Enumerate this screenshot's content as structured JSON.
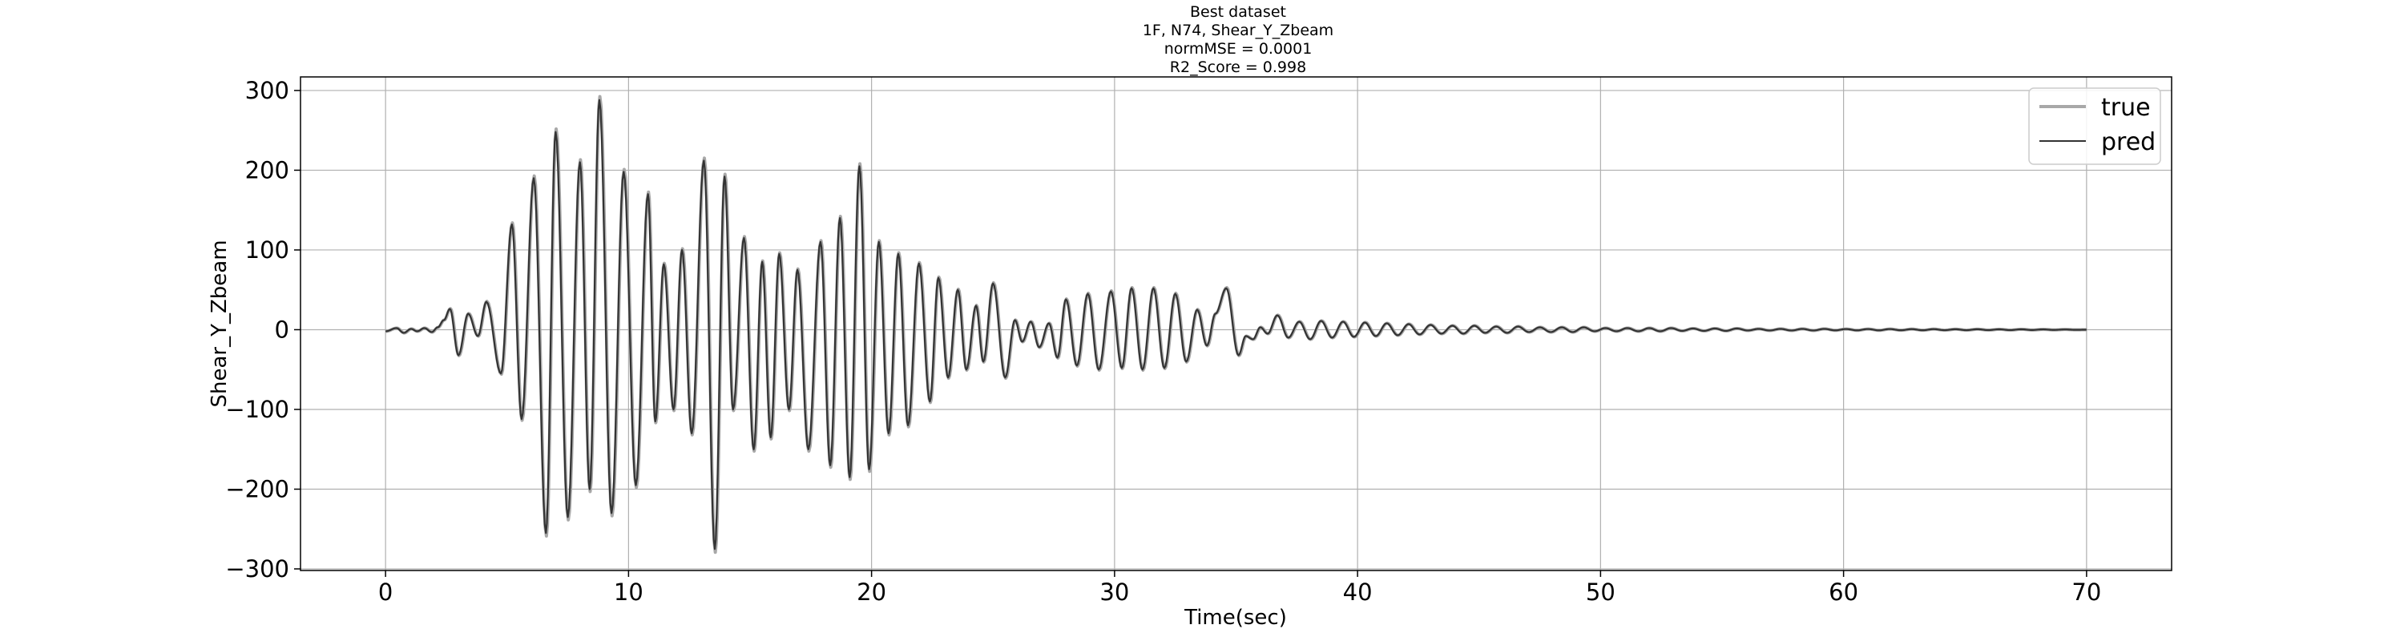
{
  "chart_data": {
    "type": "line",
    "title_lines": [
      "Best dataset",
      "1F, N74, Shear_Y_Zbeam",
      "normMSE = 0.0001",
      "R2_Score = 0.998"
    ],
    "xlabel": "Time(sec)",
    "ylabel": "Shear_Y_Zbeam",
    "xlim": [
      -3.5,
      73.5
    ],
    "ylim": [
      -302,
      317
    ],
    "xticks": [
      0,
      10,
      20,
      30,
      40,
      50,
      60,
      70
    ],
    "yticks": [
      -300,
      -200,
      -100,
      0,
      100,
      200,
      300
    ],
    "xtick_labels": [
      "0",
      "10",
      "20",
      "30",
      "40",
      "50",
      "60",
      "70"
    ],
    "ytick_labels": [
      "−300",
      "−200",
      "−100",
      "0",
      "100",
      "200",
      "300"
    ],
    "grid": true,
    "legend_position": "top-right",
    "series": [
      {
        "name": "true",
        "color": "#a8a8a8"
      },
      {
        "name": "pred",
        "color": "#333333"
      }
    ],
    "x_range": [
      0,
      70
    ],
    "peaks": [
      {
        "t": 0.0,
        "v": -2
      },
      {
        "t": 0.45,
        "v": 2
      },
      {
        "t": 0.75,
        "v": -4
      },
      {
        "t": 1.05,
        "v": 1
      },
      {
        "t": 1.3,
        "v": -2
      },
      {
        "t": 1.6,
        "v": 2
      },
      {
        "t": 1.9,
        "v": -3
      },
      {
        "t": 2.15,
        "v": 3
      },
      {
        "t": 2.4,
        "v": 12
      },
      {
        "t": 2.65,
        "v": 26
      },
      {
        "t": 3.0,
        "v": -32
      },
      {
        "t": 3.4,
        "v": 20
      },
      {
        "t": 3.8,
        "v": -8
      },
      {
        "t": 4.15,
        "v": 35
      },
      {
        "t": 4.75,
        "v": -55
      },
      {
        "t": 5.2,
        "v": 132
      },
      {
        "t": 5.6,
        "v": -112
      },
      {
        "t": 6.1,
        "v": 190
      },
      {
        "t": 6.6,
        "v": -255
      },
      {
        "t": 7.0,
        "v": 248
      },
      {
        "t": 7.5,
        "v": -235
      },
      {
        "t": 8.0,
        "v": 210
      },
      {
        "t": 8.4,
        "v": -200
      },
      {
        "t": 8.8,
        "v": 288
      },
      {
        "t": 9.3,
        "v": -230
      },
      {
        "t": 9.8,
        "v": 198
      },
      {
        "t": 10.3,
        "v": -195
      },
      {
        "t": 10.8,
        "v": 170
      },
      {
        "t": 11.1,
        "v": -115
      },
      {
        "t": 11.45,
        "v": 82
      },
      {
        "t": 11.85,
        "v": -100
      },
      {
        "t": 12.2,
        "v": 100
      },
      {
        "t": 12.6,
        "v": -130
      },
      {
        "t": 13.1,
        "v": 212
      },
      {
        "t": 13.55,
        "v": -275
      },
      {
        "t": 13.95,
        "v": 192
      },
      {
        "t": 14.3,
        "v": -100
      },
      {
        "t": 14.75,
        "v": 115
      },
      {
        "t": 15.15,
        "v": -150
      },
      {
        "t": 15.5,
        "v": 85
      },
      {
        "t": 15.85,
        "v": -135
      },
      {
        "t": 16.2,
        "v": 95
      },
      {
        "t": 16.6,
        "v": -100
      },
      {
        "t": 16.95,
        "v": 75
      },
      {
        "t": 17.4,
        "v": -150
      },
      {
        "t": 17.9,
        "v": 110
      },
      {
        "t": 18.3,
        "v": -170
      },
      {
        "t": 18.7,
        "v": 140
      },
      {
        "t": 19.1,
        "v": -185
      },
      {
        "t": 19.5,
        "v": 205
      },
      {
        "t": 19.9,
        "v": -175
      },
      {
        "t": 20.3,
        "v": 110
      },
      {
        "t": 20.7,
        "v": -130
      },
      {
        "t": 21.1,
        "v": 95
      },
      {
        "t": 21.5,
        "v": -120
      },
      {
        "t": 21.95,
        "v": 83
      },
      {
        "t": 22.4,
        "v": -90
      },
      {
        "t": 22.75,
        "v": 65
      },
      {
        "t": 23.15,
        "v": -60
      },
      {
        "t": 23.55,
        "v": 50
      },
      {
        "t": 23.9,
        "v": -50
      },
      {
        "t": 24.3,
        "v": 30
      },
      {
        "t": 24.6,
        "v": -40
      },
      {
        "t": 25.0,
        "v": 58
      },
      {
        "t": 25.5,
        "v": -60
      },
      {
        "t": 25.9,
        "v": 12
      },
      {
        "t": 26.2,
        "v": -15
      },
      {
        "t": 26.55,
        "v": 10
      },
      {
        "t": 26.9,
        "v": -22
      },
      {
        "t": 27.3,
        "v": 8
      },
      {
        "t": 27.65,
        "v": -35
      },
      {
        "t": 28.0,
        "v": 38
      },
      {
        "t": 28.45,
        "v": -45
      },
      {
        "t": 28.9,
        "v": 45
      },
      {
        "t": 29.35,
        "v": -50
      },
      {
        "t": 29.85,
        "v": 48
      },
      {
        "t": 30.3,
        "v": -48
      },
      {
        "t": 30.7,
        "v": 52
      },
      {
        "t": 31.15,
        "v": -50
      },
      {
        "t": 31.6,
        "v": 52
      },
      {
        "t": 32.05,
        "v": -48
      },
      {
        "t": 32.5,
        "v": 45
      },
      {
        "t": 32.95,
        "v": -40
      },
      {
        "t": 33.4,
        "v": 25
      },
      {
        "t": 33.8,
        "v": -20
      },
      {
        "t": 34.15,
        "v": 20
      },
      {
        "t": 34.6,
        "v": 52
      },
      {
        "t": 35.1,
        "v": -32
      },
      {
        "t": 35.4,
        "v": -8
      },
      {
        "t": 35.7,
        "v": -12
      },
      {
        "t": 36.0,
        "v": 3
      },
      {
        "t": 36.3,
        "v": -5
      },
      {
        "t": 36.7,
        "v": 18
      },
      {
        "t": 37.15,
        "v": -10
      },
      {
        "t": 37.6,
        "v": 10
      },
      {
        "t": 38.05,
        "v": -12
      },
      {
        "t": 38.5,
        "v": 11
      },
      {
        "t": 38.95,
        "v": -10
      },
      {
        "t": 39.4,
        "v": 10
      },
      {
        "t": 39.85,
        "v": -9
      },
      {
        "t": 40.3,
        "v": 9
      },
      {
        "t": 40.75,
        "v": -8
      },
      {
        "t": 41.2,
        "v": 8
      },
      {
        "t": 41.65,
        "v": -7
      },
      {
        "t": 42.1,
        "v": 7
      },
      {
        "t": 42.55,
        "v": -6
      },
      {
        "t": 43.0,
        "v": 6
      },
      {
        "t": 43.45,
        "v": -5
      },
      {
        "t": 43.9,
        "v": 5
      },
      {
        "t": 44.35,
        "v": -5
      },
      {
        "t": 44.8,
        "v": 5
      },
      {
        "t": 45.25,
        "v": -4
      },
      {
        "t": 45.7,
        "v": 4
      },
      {
        "t": 46.15,
        "v": -4
      },
      {
        "t": 46.6,
        "v": 4
      },
      {
        "t": 47.05,
        "v": -3
      },
      {
        "t": 47.5,
        "v": 3
      },
      {
        "t": 47.95,
        "v": -3
      },
      {
        "t": 48.4,
        "v": 3
      },
      {
        "t": 48.85,
        "v": -3
      },
      {
        "t": 49.3,
        "v": 3
      },
      {
        "t": 49.75,
        "v": -2
      },
      {
        "t": 50.2,
        "v": 2
      },
      {
        "t": 50.65,
        "v": -2
      },
      {
        "t": 51.1,
        "v": 2
      },
      {
        "t": 51.55,
        "v": -2
      },
      {
        "t": 52.0,
        "v": 2
      },
      {
        "t": 52.45,
        "v": -2
      },
      {
        "t": 52.9,
        "v": 2
      },
      {
        "t": 53.35,
        "v": -1.5
      },
      {
        "t": 53.8,
        "v": 1.5
      },
      {
        "t": 54.25,
        "v": -1.5
      },
      {
        "t": 54.7,
        "v": 1.5
      },
      {
        "t": 55.15,
        "v": -1.5
      },
      {
        "t": 55.6,
        "v": 1.5
      },
      {
        "t": 56.05,
        "v": -1
      },
      {
        "t": 56.5,
        "v": 1
      },
      {
        "t": 56.95,
        "v": -1
      },
      {
        "t": 57.4,
        "v": 1
      },
      {
        "t": 57.85,
        "v": -1
      },
      {
        "t": 58.3,
        "v": 1
      },
      {
        "t": 58.75,
        "v": -1
      },
      {
        "t": 59.2,
        "v": 1
      },
      {
        "t": 59.65,
        "v": -0.8
      },
      {
        "t": 60.1,
        "v": 0.8
      },
      {
        "t": 60.55,
        "v": -0.8
      },
      {
        "t": 61.0,
        "v": 0.8
      },
      {
        "t": 61.45,
        "v": -0.8
      },
      {
        "t": 61.9,
        "v": 0.8
      },
      {
        "t": 62.35,
        "v": -0.7
      },
      {
        "t": 62.8,
        "v": 0.7
      },
      {
        "t": 63.25,
        "v": -0.7
      },
      {
        "t": 63.7,
        "v": 0.7
      },
      {
        "t": 64.15,
        "v": -0.6
      },
      {
        "t": 64.6,
        "v": 0.6
      },
      {
        "t": 65.05,
        "v": -0.6
      },
      {
        "t": 65.5,
        "v": 0.6
      },
      {
        "t": 65.95,
        "v": -0.5
      },
      {
        "t": 66.4,
        "v": 0.5
      },
      {
        "t": 66.85,
        "v": -0.5
      },
      {
        "t": 67.3,
        "v": 0.5
      },
      {
        "t": 67.75,
        "v": -0.4
      },
      {
        "t": 68.2,
        "v": 0.4
      },
      {
        "t": 68.65,
        "v": -0.3
      },
      {
        "t": 69.1,
        "v": 0.3
      },
      {
        "t": 69.55,
        "v": -0.2
      },
      {
        "t": 70.0,
        "v": 0
      }
    ]
  }
}
